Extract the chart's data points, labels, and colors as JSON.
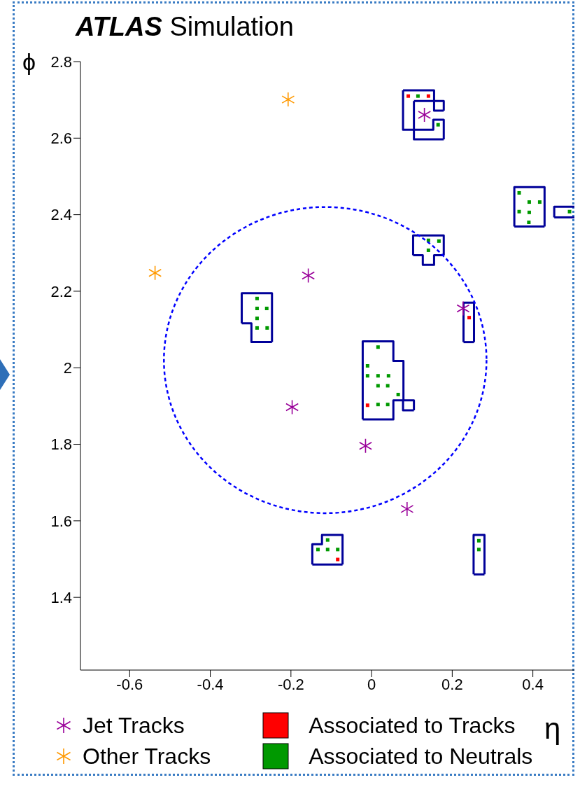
{
  "chart_data": {
    "type": "scatter",
    "title": "ATLAS Simulation",
    "xlabel": "η",
    "ylabel": "ϕ",
    "xlim": [
      -0.722,
      0.503
    ],
    "ylim": [
      1.21,
      2.8
    ],
    "xticks": [
      -0.6,
      -0.4,
      -0.2,
      0,
      0.2,
      0.4
    ],
    "yticks": [
      1.4,
      1.6,
      1.8,
      2,
      2.2,
      2.4,
      2.6,
      2.8
    ],
    "legend": "bottom",
    "series": [
      {
        "type": "line",
        "color": "#000099",
        "x": [
          0.078,
          0.155,
          0.155,
          0.179,
          0.179
        ],
        "values": [
          2.725,
          2.725,
          2.697,
          2.697,
          2.672
        ]
      },
      {
        "type": "line",
        "color": "#000099",
        "x": [
          0.105,
          0.155,
          0.155,
          0.179
        ],
        "values": [
          2.697,
          2.697,
          2.672,
          2.672
        ]
      },
      {
        "type": "line",
        "color": "#000099",
        "x": [
          0.105,
          0.105,
          0.153,
          0.153,
          0.179,
          0.179
        ],
        "values": [
          2.697,
          2.622,
          2.622,
          2.648,
          2.648,
          2.597
        ]
      },
      {
        "type": "line",
        "color": "#000099",
        "x": [
          0.078,
          0.078,
          0.105,
          0.105,
          0.179
        ],
        "values": [
          2.725,
          2.622,
          2.622,
          2.597,
          2.597
        ]
      },
      {
        "type": "line",
        "color": "#000099",
        "x": [
          0.103,
          0.103,
          0.179,
          0.179
        ],
        "values": [
          2.294,
          2.346,
          2.346,
          2.294
        ]
      },
      {
        "type": "line",
        "color": "#000099",
        "x": [
          0.103,
          0.127,
          0.127,
          0.155,
          0.155,
          0.179
        ],
        "values": [
          2.294,
          2.294,
          2.269,
          2.269,
          2.294,
          2.294
        ]
      },
      {
        "type": "line",
        "color": "#000099",
        "x": [
          -0.322,
          -0.322,
          -0.247,
          -0.247
        ],
        "values": [
          2.116,
          2.195,
          2.195,
          2.067
        ]
      },
      {
        "type": "line",
        "color": "#000099",
        "x": [
          -0.322,
          -0.298,
          -0.298,
          -0.247
        ],
        "values": [
          2.116,
          2.116,
          2.067,
          2.067
        ]
      },
      {
        "type": "line",
        "color": "#000099",
        "x": [
          -0.022,
          -0.022,
          0.054,
          0.054,
          0.079,
          0.079,
          0.105,
          0.105
        ],
        "values": [
          1.865,
          2.069,
          2.069,
          2.018,
          2.018,
          1.915,
          1.915,
          1.889
        ]
      },
      {
        "type": "line",
        "color": "#000099",
        "x": [
          -0.022,
          0.054,
          0.054,
          0.078,
          0.078,
          0.105
        ],
        "values": [
          1.865,
          1.865,
          1.915,
          1.915,
          1.889,
          1.889
        ]
      },
      {
        "type": "line",
        "color": "#000099",
        "x": [
          0.228,
          0.228,
          0.254,
          0.254
        ],
        "values": [
          2.067,
          2.17,
          2.17,
          2.067
        ]
      },
      {
        "type": "line",
        "color": "#000099",
        "x": [
          0.228,
          0.254
        ],
        "values": [
          2.067,
          2.067
        ]
      },
      {
        "type": "line",
        "color": "#000099",
        "x": [
          -0.147,
          -0.147,
          -0.123,
          -0.123,
          -0.072,
          -0.072
        ],
        "values": [
          1.486,
          1.539,
          1.539,
          1.563,
          1.563,
          1.486
        ]
      },
      {
        "type": "line",
        "color": "#000099",
        "x": [
          -0.147,
          -0.072
        ],
        "values": [
          1.486,
          1.486
        ]
      },
      {
        "type": "line",
        "color": "#000099",
        "x": [
          0.253,
          0.253,
          0.28,
          0.28
        ],
        "values": [
          1.46,
          1.563,
          1.563,
          1.46
        ]
      },
      {
        "type": "line",
        "color": "#000099",
        "x": [
          0.253,
          0.28
        ],
        "values": [
          1.46,
          1.46
        ]
      },
      {
        "type": "line",
        "color": "#000099",
        "x": [
          0.354,
          0.354,
          0.429,
          0.429
        ],
        "values": [
          2.369,
          2.472,
          2.472,
          2.369
        ]
      },
      {
        "type": "line",
        "color": "#000099",
        "x": [
          0.354,
          0.429
        ],
        "values": [
          2.369,
          2.369
        ]
      },
      {
        "type": "line",
        "color": "#000099",
        "x": [
          0.453,
          0.453,
          0.503
        ],
        "values": [
          2.393,
          2.421,
          2.421
        ]
      },
      {
        "type": "line",
        "color": "#000099",
        "x": [
          0.453,
          0.503
        ],
        "values": [
          2.393,
          2.393
        ]
      },
      {
        "name": "Associated to Tracks",
        "color": "#ff0000",
        "marker": "square",
        "x": [
          0.091,
          0.141,
          0.242,
          -0.084,
          -0.01
        ],
        "values": [
          2.71,
          2.71,
          2.131,
          1.499,
          1.902
        ]
      },
      {
        "name": "Associated to Neutrals",
        "color": "#009900",
        "marker": "square",
        "x": [
          0.115,
          0.165,
          0.141,
          0.167,
          0.141,
          -0.284,
          -0.26,
          -0.284,
          -0.284,
          -0.259,
          -0.284,
          0.016,
          0.016,
          0.04,
          0.042,
          -0.01,
          0.016,
          -0.01,
          0.066,
          0.016,
          0.04,
          -0.133,
          -0.109,
          -0.109,
          -0.084,
          0.266,
          0.266,
          0.391,
          0.391,
          0.417,
          0.366,
          0.39,
          0.366,
          0.491
        ],
        "values": [
          2.71,
          2.635,
          2.333,
          2.331,
          2.307,
          2.155,
          2.155,
          2.129,
          2.104,
          2.104,
          2.181,
          1.953,
          1.979,
          1.953,
          1.979,
          1.979,
          2.054,
          2.005,
          1.93,
          1.904,
          1.904,
          1.525,
          1.525,
          1.55,
          1.525,
          1.548,
          1.525,
          2.406,
          2.433,
          2.433,
          2.408,
          2.38,
          2.457,
          2.408
        ]
      },
      {
        "name": "Jet Tracks",
        "color": "#990099",
        "marker": "cross",
        "x": [
          0.131,
          -0.157,
          0.227,
          -0.197,
          -0.015,
          0.088
        ],
        "values": [
          2.661,
          2.241,
          2.155,
          1.897,
          1.796,
          1.631
        ]
      },
      {
        "name": "Other Tracks",
        "color": "#ff9900",
        "marker": "cross",
        "x": [
          -0.207,
          -0.537
        ],
        "values": [
          2.701,
          2.248
        ]
      }
    ]
  }
}
